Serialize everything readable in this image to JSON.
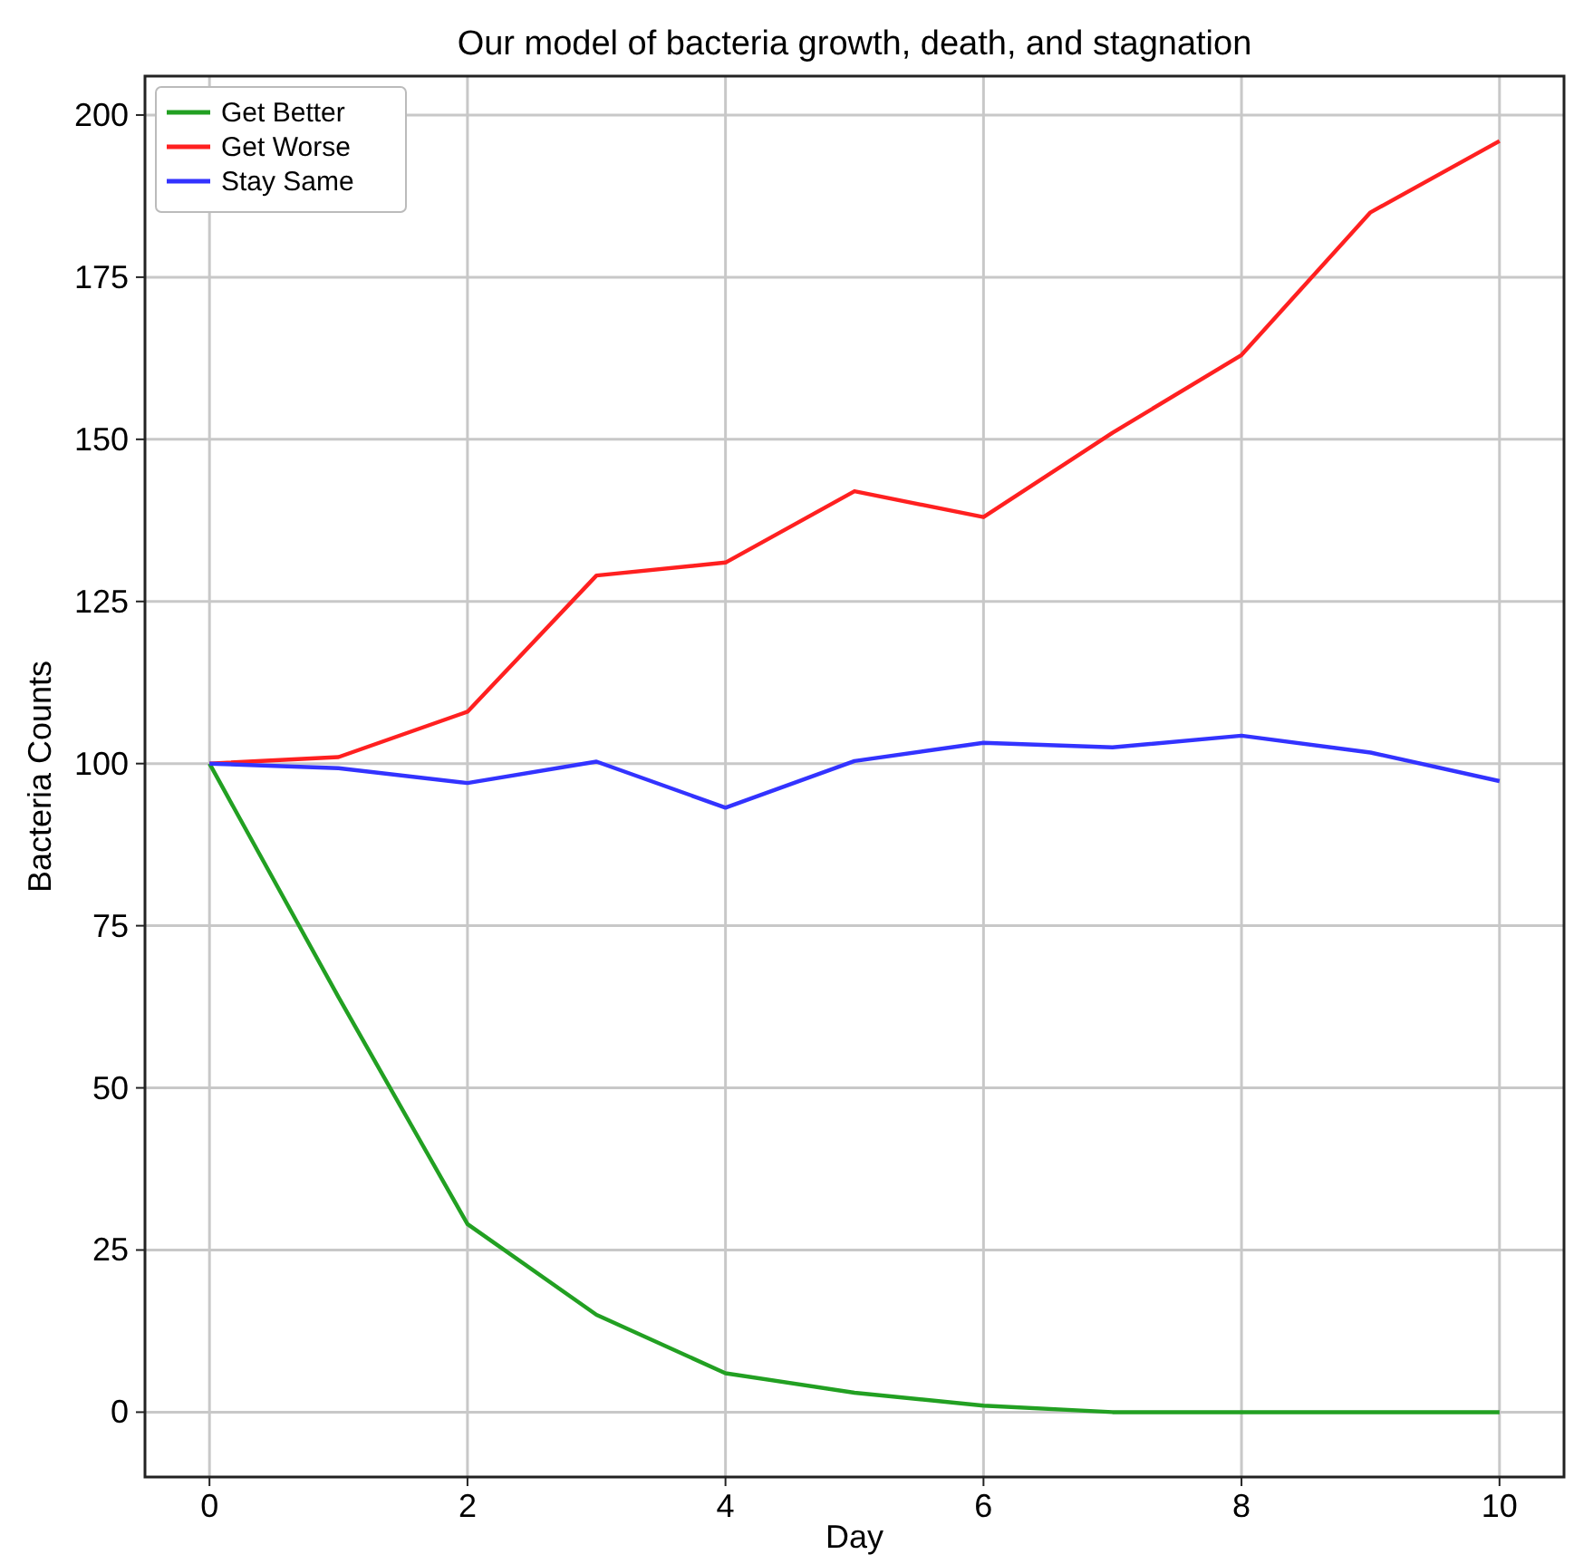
{
  "chart_data": {
    "type": "line",
    "title": "Our model of bacteria growth, death, and stagnation",
    "xlabel": "Day",
    "ylabel": "Bacteria Counts",
    "x": [
      0,
      1,
      2,
      3,
      4,
      5,
      6,
      7,
      8,
      9,
      10
    ],
    "series": [
      {
        "name": "Get Better",
        "color": "#22a022",
        "values": [
          100,
          64,
          29,
          15,
          6,
          3,
          1,
          0,
          0,
          0,
          0
        ]
      },
      {
        "name": "Get Worse",
        "color": "#ff2020",
        "values": [
          100,
          101,
          108,
          129,
          131,
          142,
          138,
          151,
          163,
          185,
          196
        ]
      },
      {
        "name": "Stay Same",
        "color": "#3333ff",
        "values": [
          100,
          99.3,
          97,
          100.3,
          93.2,
          100.4,
          103.2,
          102.5,
          104.3,
          101.7,
          97.3
        ]
      }
    ],
    "xlim": [
      -0.5,
      10.5
    ],
    "xticks": [
      0,
      2,
      4,
      6,
      8,
      10
    ],
    "ylim": [
      -10,
      206
    ],
    "yticks": [
      0,
      25,
      50,
      75,
      100,
      125,
      150,
      175,
      200
    ],
    "grid": true,
    "legend": "top left",
    "marker": "none",
    "line_style": "solid"
  }
}
